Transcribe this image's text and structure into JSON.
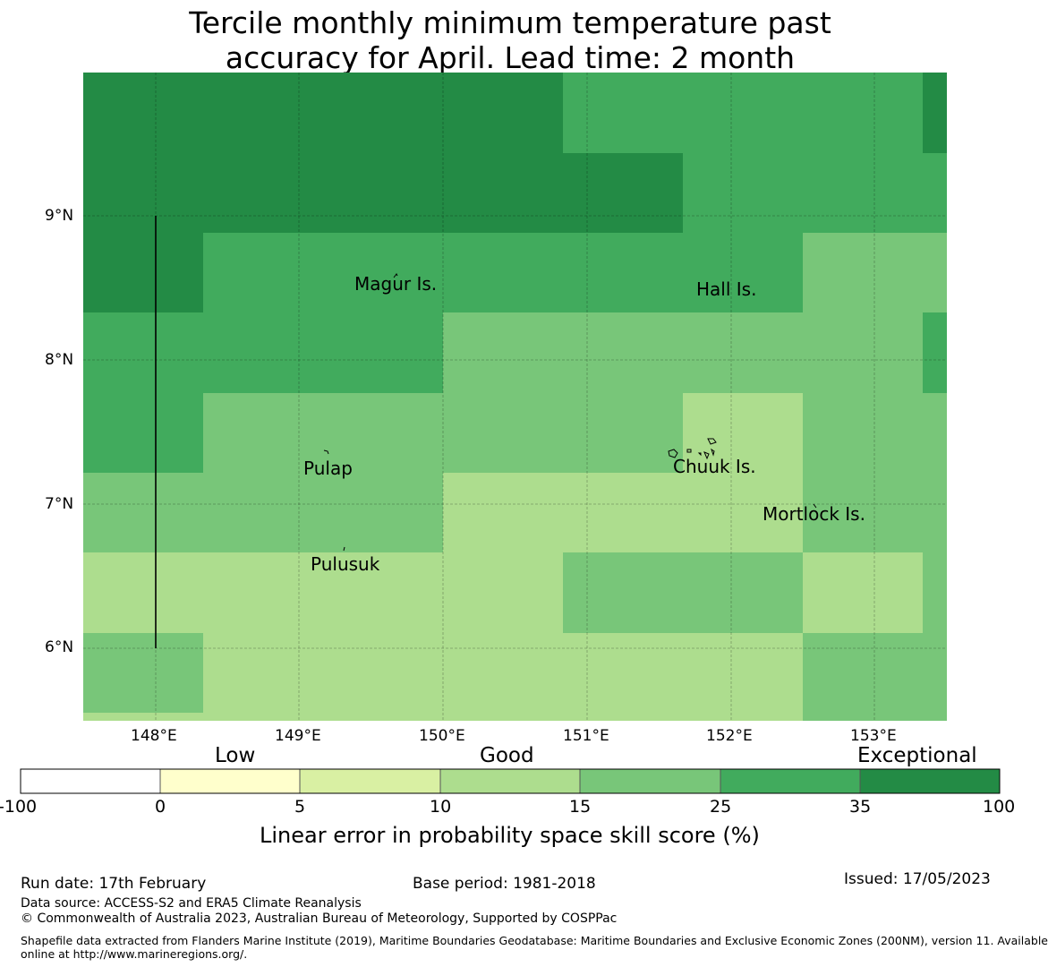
{
  "title_line1": "Tercile monthly minimum temperature past",
  "title_line2": "accuracy for April. Lead time: 2 month",
  "map": {
    "lat_labels": [
      "9°N",
      "8°N",
      "7°N",
      "6°N"
    ],
    "lon_labels": [
      "148°E",
      "149°E",
      "150°E",
      "151°E",
      "152°E",
      "153°E"
    ],
    "places": {
      "magur": "Magur Is.",
      "hall": "Hall Is.",
      "pulap": "Pulap",
      "chuuk": "Chuuk Is.",
      "mortlock": "Mortlock Is.",
      "pulusuk": "Pulusuk"
    },
    "colors": {
      "c100": "#238b45",
      "c35": "#41ab5d",
      "c25": "#78c679",
      "c15": "#addd8e",
      "c10": "#d9f0a3",
      "c5": "#ffffcc",
      "c0": "#ffffff"
    }
  },
  "colorbar": {
    "categories": {
      "low": "Low",
      "good": "Good",
      "exceptional": "Exceptional"
    },
    "ticks": [
      "-100",
      "0",
      "5",
      "10",
      "15",
      "25",
      "35",
      "100"
    ],
    "label": "Linear error in probability space skill score (%)"
  },
  "footer": {
    "run_date": "Run date: 17th February",
    "base_period": "Base period: 1981-2018",
    "issued": "Issued: 17/05/2023",
    "data_source": "Data source: ACCESS-S2 and ERA5 Climate Reanalysis",
    "copyright": "© Commonwealth of Australia 2023, Australian Bureau of Meteorology, Supported by COSPPac",
    "shapefile_line1": "Shapefile data extracted from Flanders Marine Institute (2019), Maritime Boundaries Geodatabase: Maritime Boundaries and Exclusive Economic Zones (200NM), version 11. Available",
    "shapefile_line2": "online at http://www.marineregions.org/."
  }
}
